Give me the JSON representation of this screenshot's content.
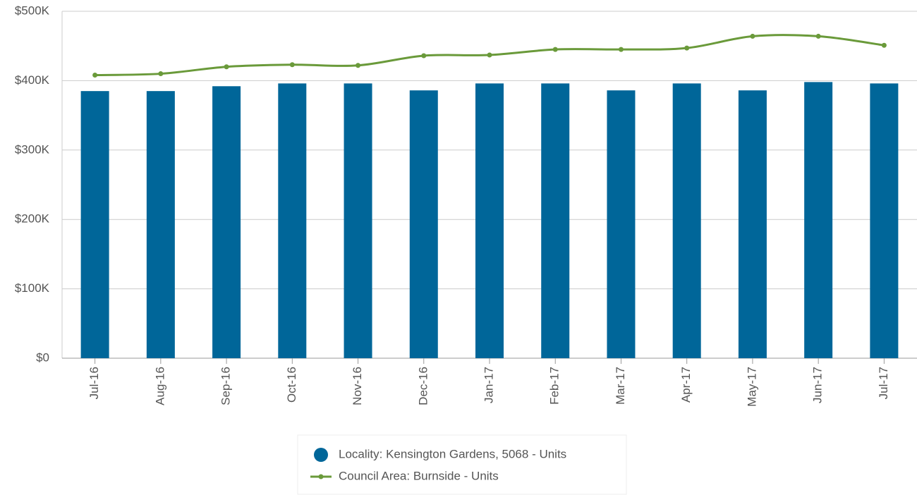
{
  "chart_data": {
    "type": "bar_line",
    "categories": [
      "Jul-16",
      "Aug-16",
      "Sep-16",
      "Oct-16",
      "Nov-16",
      "Dec-16",
      "Jan-17",
      "Feb-17",
      "Mar-17",
      "Apr-17",
      "May-17",
      "Jun-17",
      "Jul-17"
    ],
    "series": [
      {
        "name": "Locality: Kensington Gardens, 5068 - Units",
        "type": "bar",
        "color": "#006699",
        "values": [
          385000,
          385000,
          392000,
          396000,
          396000,
          386000,
          396000,
          396000,
          386000,
          396000,
          386000,
          398000,
          396000
        ]
      },
      {
        "name": "Council Area: Burnside - Units",
        "type": "line",
        "color": "#6a9a3a",
        "values": [
          408000,
          410000,
          420000,
          423000,
          422000,
          436000,
          437000,
          445000,
          445000,
          447000,
          464000,
          464000,
          451000
        ]
      }
    ],
    "ylim": [
      0,
      500000
    ],
    "yticks": [
      {
        "value": 0,
        "label": "$0"
      },
      {
        "value": 100000,
        "label": "$100K"
      },
      {
        "value": 200000,
        "label": "$200K"
      },
      {
        "value": 300000,
        "label": "$300K"
      },
      {
        "value": 400000,
        "label": "$400K"
      },
      {
        "value": 500000,
        "label": "$500K"
      }
    ],
    "grid": true,
    "legend": "bottom"
  }
}
